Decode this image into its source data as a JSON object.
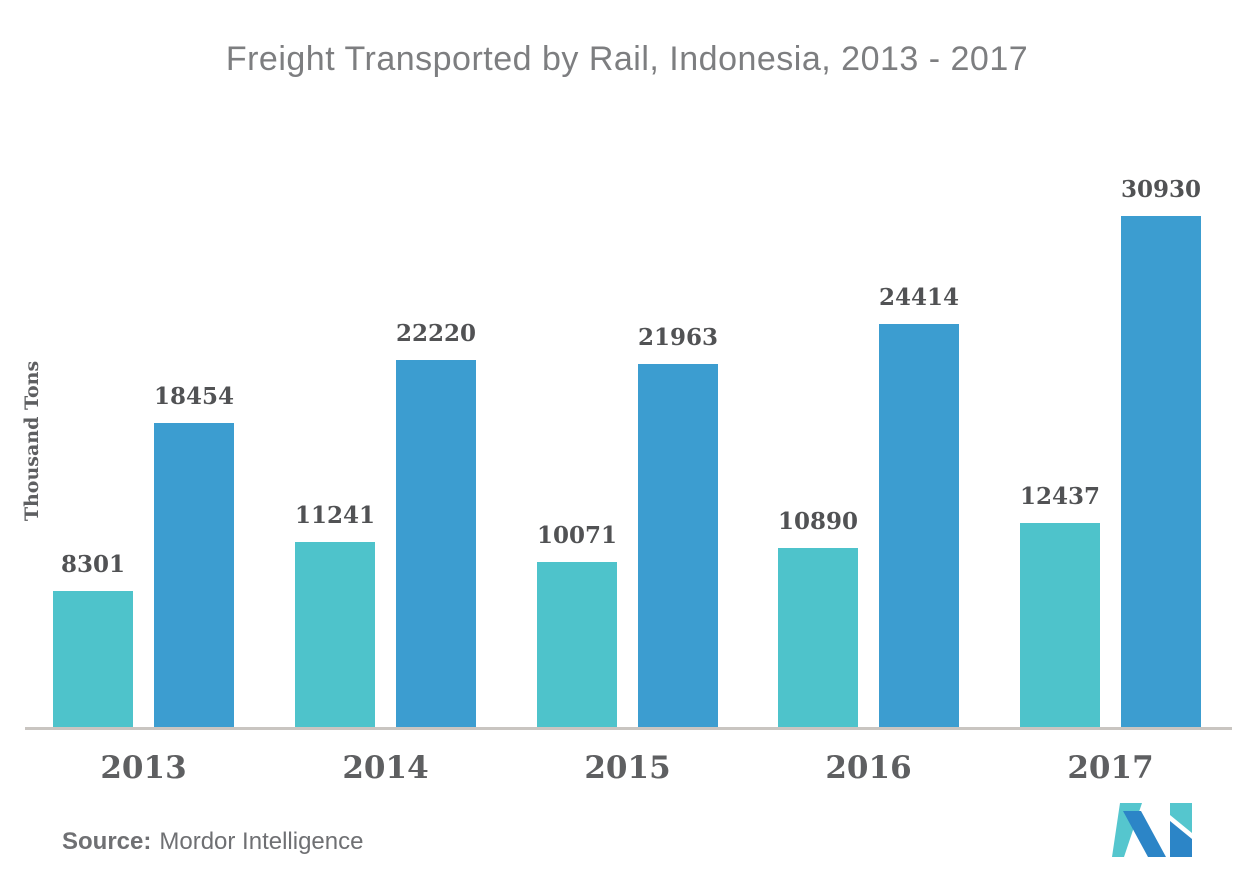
{
  "chart_data": {
    "type": "bar",
    "title": "Freight Transported by Rail, Indonesia, 2013 - 2017",
    "xlabel": "",
    "ylabel": "Thousand Tons",
    "categories": [
      "2013",
      "2014",
      "2015",
      "2016",
      "2017"
    ],
    "series": [
      {
        "name": "series-1",
        "color": "#4ec3cb",
        "values": [
          8301,
          11241,
          10071,
          10890,
          12437
        ]
      },
      {
        "name": "series-2",
        "color": "#3c9dd0",
        "values": [
          18454,
          22220,
          21963,
          24414,
          30930
        ]
      }
    ],
    "data_labels": [
      [
        "8301",
        "18454"
      ],
      [
        "11241",
        "22220"
      ],
      [
        "10071",
        "21963"
      ],
      [
        "10890",
        "24414"
      ],
      [
        "12437",
        "30930"
      ]
    ],
    "grid": false,
    "legend": "none",
    "ylim": [
      0,
      32000
    ]
  },
  "source": {
    "label": "Source:",
    "value": "Mordor Intelligence"
  },
  "colors": {
    "bar_teal": "#4ec3cb",
    "bar_blue": "#3c9dd0",
    "logo_teal": "#55c6ce",
    "logo_blue": "#2c85c7",
    "axis_line": "#c9c5c1",
    "title_gray": "#7d7e80",
    "label_gray": "#515254"
  },
  "logo": {
    "name": "mordor-intelligence-logo"
  }
}
